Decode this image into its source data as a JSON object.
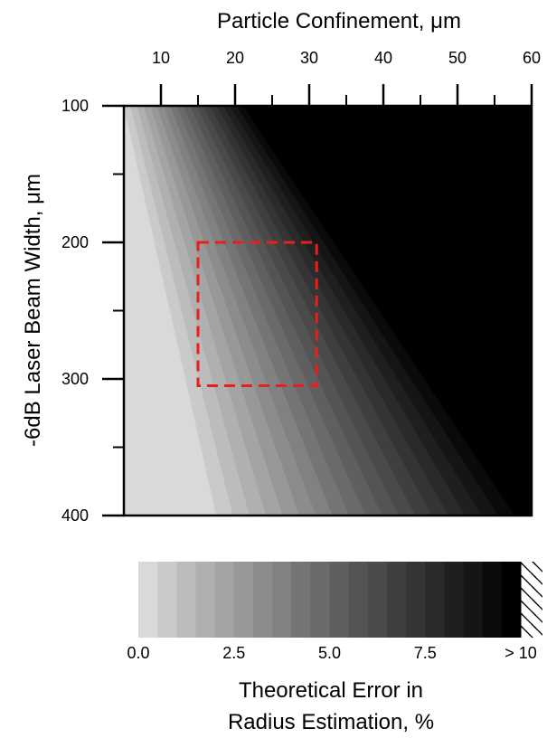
{
  "chart_data": {
    "type": "heatmap",
    "xlabel": "Particle Confinement, μm",
    "ylabel": "-6dB Laser Beam Width, μm",
    "xlim": [
      5,
      60
    ],
    "ylim": [
      100,
      400
    ],
    "x_axis_position": "top",
    "y_inverted": true,
    "x_ticks": [
      10,
      20,
      30,
      40,
      50,
      60
    ],
    "x_tick_labels": [
      "10",
      "20",
      "30",
      "40",
      "50",
      "60"
    ],
    "y_ticks": [
      100,
      200,
      300,
      400
    ],
    "y_tick_labels": [
      "100",
      "200",
      "300",
      "400"
    ],
    "colorbar": {
      "title_line1": "Theoretical Error in",
      "title_line2": "Radius Estimation, %",
      "range": [
        0,
        10
      ],
      "levels": 20,
      "ticks": [
        0,
        2.5,
        5,
        7.5,
        10
      ],
      "tick_labels": [
        "0.0",
        "2.5",
        "5.0",
        "7.5",
        "> 10"
      ],
      "over_range_hatch": true,
      "low_color": "#d9d9d9",
      "high_color": "#000000"
    },
    "contour_boundaries": [
      {
        "level": 0.5,
        "x_at_100": 5,
        "x_at_400": 17.5
      },
      {
        "level": 10,
        "x_at_100": 22,
        "x_at_400": 60
      }
    ],
    "hatched_region": "error > 10 %",
    "highlight_box": {
      "x_range": [
        15,
        31
      ],
      "y_range": [
        200,
        305
      ],
      "color": "#e62020",
      "style": "dashed"
    }
  }
}
